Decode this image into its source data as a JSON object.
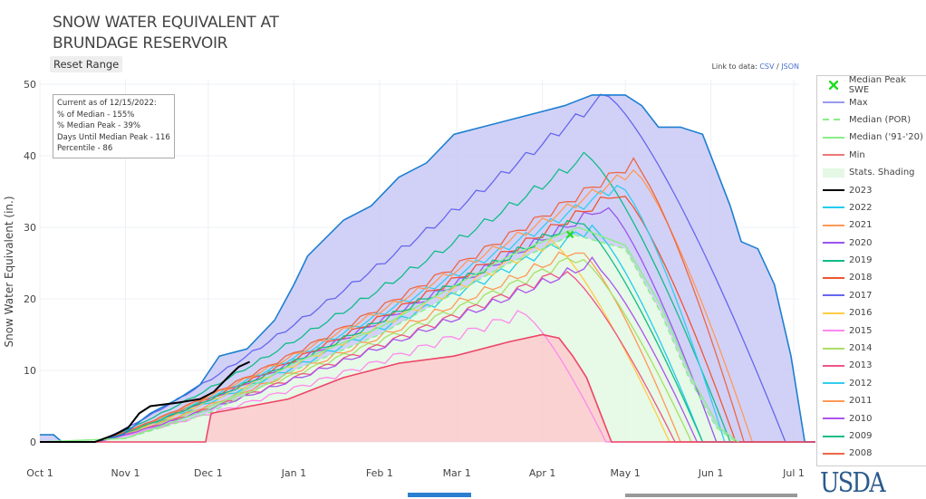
{
  "header": {
    "title": "SNOW WATER EQUIVALENT AT\nBRUNDAGE RESERVOIR",
    "reset_label": "Reset Range",
    "link_prefix": "Link to data:",
    "csv": "CSV",
    "sep": "/",
    "json": "JSON"
  },
  "info": [
    "Current as of 12/15/2022:",
    "% of Median - 155%",
    "% Median Peak - 39%",
    "Days Until Median Peak - 116",
    "Percentile - 86"
  ],
  "brand": "USDA",
  "chart_data": {
    "type": "line",
    "ylabel": "Snow Water Equivalent (in.)",
    "ylim": [
      0,
      50
    ],
    "yticks": [
      0,
      10,
      20,
      30,
      40,
      50
    ],
    "x_unit": "days since Oct 1",
    "xlim": [
      0,
      273
    ],
    "xticks": [
      {
        "d": 0,
        "l": "Oct 1"
      },
      {
        "d": 31,
        "l": "Nov 1"
      },
      {
        "d": 61,
        "l": "Dec 1"
      },
      {
        "d": 92,
        "l": "Jan 1"
      },
      {
        "d": 123,
        "l": "Feb 1"
      },
      {
        "d": 151,
        "l": "Mar 1"
      },
      {
        "d": 182,
        "l": "Apr 1"
      },
      {
        "d": 212,
        "l": "May 1"
      },
      {
        "d": 243,
        "l": "Jun 1"
      },
      {
        "d": 273,
        "l": "Jul 1"
      }
    ],
    "max": [
      [
        0,
        1
      ],
      [
        5,
        1
      ],
      [
        8,
        0
      ],
      [
        20,
        0
      ],
      [
        30,
        1
      ],
      [
        40,
        4
      ],
      [
        50,
        6
      ],
      [
        58,
        8
      ],
      [
        65,
        12
      ],
      [
        75,
        13
      ],
      [
        85,
        17
      ],
      [
        92,
        22
      ],
      [
        97,
        26
      ],
      [
        110,
        31
      ],
      [
        120,
        33
      ],
      [
        130,
        37
      ],
      [
        140,
        39
      ],
      [
        150,
        43
      ],
      [
        160,
        44
      ],
      [
        170,
        45
      ],
      [
        180,
        46
      ],
      [
        190,
        47
      ],
      [
        200,
        48.5
      ],
      [
        212,
        48.5
      ],
      [
        218,
        47
      ],
      [
        220,
        46
      ],
      [
        224,
        44
      ],
      [
        232,
        44
      ],
      [
        240,
        43
      ],
      [
        245,
        38
      ],
      [
        250,
        33
      ],
      [
        254,
        28
      ],
      [
        260,
        27
      ],
      [
        266,
        22
      ],
      [
        272,
        12
      ],
      [
        277,
        0
      ],
      [
        285,
        0
      ]
    ],
    "min": [
      [
        0,
        0
      ],
      [
        60,
        0
      ],
      [
        62,
        4
      ],
      [
        90,
        6
      ],
      [
        110,
        9
      ],
      [
        130,
        11
      ],
      [
        150,
        12
      ],
      [
        170,
        14
      ],
      [
        182,
        15
      ],
      [
        188,
        14.5
      ],
      [
        193,
        12
      ],
      [
        198,
        9
      ],
      [
        203,
        4
      ],
      [
        207,
        0
      ],
      [
        285,
        0
      ]
    ],
    "median_por": [
      [
        0,
        0
      ],
      [
        31,
        0.5
      ],
      [
        61,
        4
      ],
      [
        92,
        10
      ],
      [
        123,
        15
      ],
      [
        151,
        21
      ],
      [
        170,
        25
      ],
      [
        182,
        27
      ],
      [
        193,
        29
      ],
      [
        212,
        27
      ],
      [
        225,
        18
      ],
      [
        235,
        9
      ],
      [
        245,
        2
      ],
      [
        252,
        0
      ]
    ],
    "median_9120": [
      [
        0,
        0
      ],
      [
        31,
        0.5
      ],
      [
        61,
        4.5
      ],
      [
        92,
        11
      ],
      [
        123,
        16
      ],
      [
        151,
        22
      ],
      [
        170,
        26
      ],
      [
        182,
        28
      ],
      [
        195,
        30
      ],
      [
        212,
        27.5
      ],
      [
        225,
        19
      ],
      [
        236,
        9
      ],
      [
        246,
        2
      ],
      [
        253,
        0
      ]
    ],
    "median_peak": {
      "d": 192,
      "v": 29
    },
    "series": [
      {
        "name": "2023",
        "color": "#000000",
        "points": [
          [
            0,
            0
          ],
          [
            20,
            0
          ],
          [
            27,
            1
          ],
          [
            32,
            2
          ],
          [
            36,
            4
          ],
          [
            40,
            5
          ],
          [
            50,
            5.5
          ],
          [
            58,
            6
          ],
          [
            63,
            7
          ],
          [
            68,
            9
          ],
          [
            72,
            10.5
          ],
          [
            76,
            11.2
          ]
        ]
      },
      {
        "name": "2022",
        "color": "#22ccee",
        "peak": 30,
        "pd": 200,
        "md": 240
      },
      {
        "name": "2021",
        "color": "#ff9955",
        "peak": 27,
        "pd": 195,
        "md": 232
      },
      {
        "name": "2020",
        "color": "#9955ee",
        "peak": 33,
        "pd": 205,
        "md": 245
      },
      {
        "name": "2019",
        "color": "#11bb88",
        "peak": 40,
        "pd": 198,
        "md": 250
      },
      {
        "name": "2018",
        "color": "#ee5533",
        "peak": 35,
        "pd": 210,
        "md": 252
      },
      {
        "name": "2017",
        "color": "#6666ee",
        "peak": 48.5,
        "pd": 205,
        "md": 270
      },
      {
        "name": "2016",
        "color": "#ffcc44",
        "peak": 28,
        "pd": 185,
        "md": 228
      },
      {
        "name": "2015",
        "color": "#ff88ee",
        "peak": 18,
        "pd": 175,
        "md": 205
      },
      {
        "name": "2014",
        "color": "#aade66",
        "peak": 26,
        "pd": 195,
        "md": 236
      },
      {
        "name": "2013",
        "color": "#ee5588",
        "peak": 24,
        "pd": 190,
        "md": 230
      },
      {
        "name": "2012",
        "color": "#33ccee",
        "peak": 36,
        "pd": 210,
        "md": 248
      },
      {
        "name": "2011",
        "color": "#ff9955",
        "peak": 38,
        "pd": 215,
        "md": 258
      },
      {
        "name": "2010",
        "color": "#aa55ee",
        "peak": 25,
        "pd": 200,
        "md": 238
      },
      {
        "name": "2009",
        "color": "#11bb88",
        "peak": 31,
        "pd": 195,
        "md": 240
      },
      {
        "name": "2008",
        "color": "#ee6644",
        "peak": 39,
        "pd": 215,
        "md": 255
      }
    ],
    "legend": [
      {
        "label": "Median Peak SWE",
        "kind": "marker",
        "color": "#22dd22"
      },
      {
        "label": "Max",
        "kind": "line",
        "color": "#9999ee"
      },
      {
        "label": "Median (POR)",
        "kind": "dash",
        "color": "#88ee88"
      },
      {
        "label": "Median ('91-'20)",
        "kind": "line",
        "color": "#88ee88"
      },
      {
        "label": "Min",
        "kind": "line",
        "color": "#ee7777"
      },
      {
        "label": "Stats. Shading",
        "kind": "fill",
        "color": "#e4f8e4"
      },
      {
        "label": "2023",
        "kind": "line",
        "color": "#000000"
      },
      {
        "label": "2022",
        "kind": "line",
        "color": "#22ccee"
      },
      {
        "label": "2021",
        "kind": "line",
        "color": "#ff9955"
      },
      {
        "label": "2020",
        "kind": "line",
        "color": "#9955ee"
      },
      {
        "label": "2019",
        "kind": "line",
        "color": "#11bb88"
      },
      {
        "label": "2018",
        "kind": "line",
        "color": "#ee5533"
      },
      {
        "label": "2017",
        "kind": "line",
        "color": "#6666ee"
      },
      {
        "label": "2016",
        "kind": "line",
        "color": "#ffcc44"
      },
      {
        "label": "2015",
        "kind": "line",
        "color": "#ff88ee"
      },
      {
        "label": "2014",
        "kind": "line",
        "color": "#aade66"
      },
      {
        "label": "2013",
        "kind": "line",
        "color": "#ee5588"
      },
      {
        "label": "2012",
        "kind": "line",
        "color": "#33ccee"
      },
      {
        "label": "2011",
        "kind": "line",
        "color": "#ff9955"
      },
      {
        "label": "2010",
        "kind": "line",
        "color": "#aa55ee"
      },
      {
        "label": "2009",
        "kind": "line",
        "color": "#11bb88"
      },
      {
        "label": "2008",
        "kind": "line",
        "color": "#ee6644"
      }
    ]
  }
}
